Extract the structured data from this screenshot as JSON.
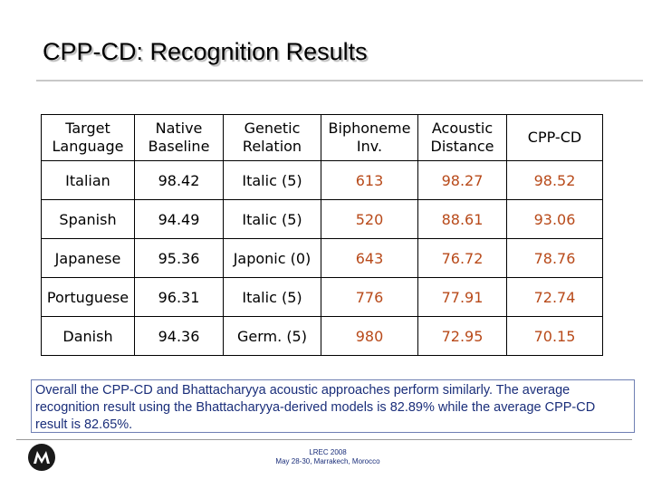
{
  "title": "CPP-CD: Recognition Results",
  "table": {
    "headers": [
      [
        "Target",
        "Language"
      ],
      [
        "Native",
        "Baseline"
      ],
      [
        "Genetic",
        "Relation"
      ],
      [
        "Biphoneme",
        "Inv."
      ],
      [
        "Acoustic",
        "Distance"
      ],
      [
        "CPP-CD"
      ]
    ],
    "rows": [
      [
        "Italian",
        "98.42",
        "Italic (5)",
        "613",
        "98.27",
        "98.52"
      ],
      [
        "Spanish",
        "94.49",
        "Italic (5)",
        "520",
        "88.61",
        "93.06"
      ],
      [
        "Japanese",
        "95.36",
        "Japonic (0)",
        "643",
        "76.72",
        "78.76"
      ],
      [
        "Portuguese",
        "96.31",
        "Italic (5)",
        "776",
        "77.91",
        "72.74"
      ],
      [
        "Danish",
        "94.36",
        "Germ. (5)",
        "980",
        "72.95",
        "70.15"
      ]
    ]
  },
  "summary": "Overall the CPP-CD and Bhattacharyya acoustic approaches perform similarly.  The average recognition result using the Bhattacharyya-derived models is 82.89% while the average CPP-CD result is 82.65%.",
  "footer": {
    "line1": "LREC 2008",
    "line2": "May 28-30, Marrakech, Morocco"
  },
  "colors": {
    "text_orange": "#b84a1a",
    "summary_text": "#1a2e7a",
    "summary_border": "#6f7fb3"
  },
  "icons": [
    "motorola-logo-icon"
  ]
}
